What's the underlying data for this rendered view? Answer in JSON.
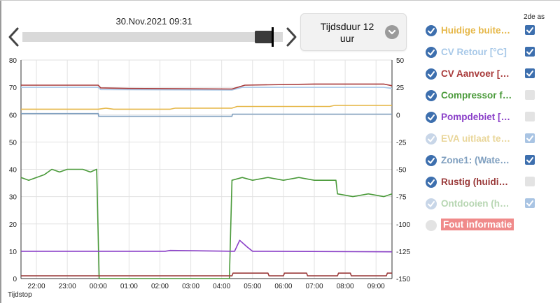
{
  "header": {
    "datetime": "30.Nov.2021 09:31",
    "duration_label": "Tijdsduur 12 uur",
    "slider_position": 0.96
  },
  "legend": {
    "axis2_header": "2de as",
    "items": [
      {
        "label": "Huidige buite…",
        "color": "#e6b84a",
        "checked": true,
        "dim": false,
        "axis2": "on"
      },
      {
        "label": "CV Retour [°C]",
        "color": "#a7c8e8",
        "checked": true,
        "dim": false,
        "axis2": "on"
      },
      {
        "label": "CV Aanvoer […",
        "color": "#a83a3a",
        "checked": true,
        "dim": false,
        "axis2": "on"
      },
      {
        "label": "Compressor f…",
        "color": "#4a9a3a",
        "checked": true,
        "dim": false,
        "axis2": "off"
      },
      {
        "label": "Pompdebiet […",
        "color": "#8a3fc8",
        "checked": true,
        "dim": false,
        "axis2": "off"
      },
      {
        "label": "EVA uitlaat te…",
        "color": "#e9d69a",
        "checked": true,
        "dim": true,
        "axis2": "dim"
      },
      {
        "label": "Zone1: (Wate…",
        "color": "#7f9fbf",
        "checked": true,
        "dim": false,
        "axis2": "on"
      },
      {
        "label": "Rustig (huidi…",
        "color": "#9a3a3a",
        "checked": true,
        "dim": false,
        "axis2": "off"
      },
      {
        "label": "Ontdooien (h…",
        "color": "#b7d6b2",
        "checked": true,
        "dim": true,
        "axis2": "dim"
      },
      {
        "label": "Fout informatie",
        "color": "#f08a8a",
        "checked": false,
        "dim": false,
        "axis2": "none",
        "badge": true
      }
    ]
  },
  "colors": {
    "check_on": "#3d6fae",
    "check_off": "#e3e3e3",
    "axis2_dim": "#a9c4e3",
    "grid": "#e2e2e2"
  },
  "chart_data": {
    "type": "line",
    "xlabel": "Tijdstop",
    "x_ticks": [
      "22:00",
      "23:00",
      "00:00",
      "01:00",
      "02:00",
      "03:00",
      "04:00",
      "05:00",
      "06:00",
      "07:00",
      "08:00",
      "09:00"
    ],
    "x_range": [
      "21:30",
      "09:31"
    ],
    "ylim_left": [
      0,
      80
    ],
    "ylim_right": [
      -150,
      50
    ],
    "yticks_left": [
      0,
      10,
      20,
      30,
      40,
      50,
      60,
      70,
      80
    ],
    "yticks_right": [
      -150,
      -125,
      -100,
      -75,
      -50,
      -25,
      0,
      25,
      50
    ],
    "grid": true,
    "series": [
      {
        "name": "Zone1: (Wate…",
        "axis": "right",
        "color": "#7f9fbf",
        "points": [
          [
            "21:30",
            1
          ],
          [
            "00:00",
            1
          ],
          [
            "00:01",
            -1.5
          ],
          [
            "04:20",
            -1.5
          ],
          [
            "04:21",
            0.5
          ],
          [
            "09:31",
            0.5
          ]
        ]
      },
      {
        "name": "Huidige buite…",
        "axis": "right",
        "color": "#e6b84a",
        "points": [
          [
            "21:30",
            5
          ],
          [
            "00:00",
            5
          ],
          [
            "00:15",
            6
          ],
          [
            "00:30",
            5
          ],
          [
            "02:20",
            5
          ],
          [
            "02:30",
            6
          ],
          [
            "04:20",
            6
          ],
          [
            "04:30",
            7.5
          ],
          [
            "07:30",
            7.5
          ],
          [
            "07:40",
            8.5
          ],
          [
            "09:31",
            8.5
          ]
        ]
      },
      {
        "name": "CV Retour [°C]",
        "axis": "right",
        "color": "#a7c8e8",
        "points": [
          [
            "21:30",
            25
          ],
          [
            "00:00",
            25
          ],
          [
            "00:05",
            23
          ],
          [
            "04:20",
            22.5
          ],
          [
            "04:40",
            25
          ],
          [
            "09:15",
            25
          ],
          [
            "09:31",
            24
          ]
        ]
      },
      {
        "name": "CV Aanvoer […",
        "axis": "right",
        "color": "#a83a3a",
        "points": [
          [
            "21:30",
            27
          ],
          [
            "00:00",
            27
          ],
          [
            "00:05",
            24.5
          ],
          [
            "01:00",
            24
          ],
          [
            "04:20",
            23.5
          ],
          [
            "04:45",
            27
          ],
          [
            "07:00",
            28
          ],
          [
            "09:15",
            28
          ],
          [
            "09:31",
            26.5
          ]
        ]
      },
      {
        "name": "Compressor f…",
        "axis": "left",
        "color": "#4a9a3a",
        "points": [
          [
            "21:30",
            37
          ],
          [
            "21:45",
            36
          ],
          [
            "22:00",
            37
          ],
          [
            "22:15",
            38
          ],
          [
            "22:30",
            40
          ],
          [
            "22:45",
            39
          ],
          [
            "23:00",
            40
          ],
          [
            "23:30",
            40
          ],
          [
            "23:45",
            39
          ],
          [
            "23:57",
            40
          ],
          [
            "00:02",
            0
          ],
          [
            "04:15",
            0
          ],
          [
            "04:20",
            36
          ],
          [
            "04:40",
            37
          ],
          [
            "05:00",
            36
          ],
          [
            "05:30",
            37
          ],
          [
            "06:00",
            36
          ],
          [
            "06:30",
            37
          ],
          [
            "07:00",
            36
          ],
          [
            "07:30",
            36
          ],
          [
            "07:42",
            36
          ],
          [
            "07:45",
            31
          ],
          [
            "08:15",
            30
          ],
          [
            "08:45",
            31
          ],
          [
            "09:15",
            30
          ],
          [
            "09:31",
            31
          ]
        ]
      },
      {
        "name": "Pompdebiet […",
        "axis": "left",
        "color": "#8a3fc8",
        "points": [
          [
            "21:30",
            10
          ],
          [
            "02:10",
            10
          ],
          [
            "02:20",
            10.3
          ],
          [
            "04:25",
            10
          ],
          [
            "04:35",
            14
          ],
          [
            "04:50",
            11.5
          ],
          [
            "05:00",
            10
          ],
          [
            "09:31",
            9.8
          ]
        ]
      },
      {
        "name": "Rustig (huidi…",
        "axis": "left",
        "color": "#9a3a3a",
        "points": [
          [
            "21:30",
            1
          ],
          [
            "04:20",
            1
          ],
          [
            "04:22",
            2
          ],
          [
            "05:30",
            2
          ],
          [
            "05:32",
            1
          ],
          [
            "06:00",
            1
          ],
          [
            "06:02",
            2
          ],
          [
            "06:45",
            2
          ],
          [
            "06:47",
            1
          ],
          [
            "07:45",
            1
          ],
          [
            "07:47",
            2
          ],
          [
            "08:10",
            2
          ],
          [
            "08:12",
            1
          ],
          [
            "09:20",
            1
          ],
          [
            "09:22",
            2
          ],
          [
            "09:31",
            2
          ]
        ]
      }
    ]
  }
}
